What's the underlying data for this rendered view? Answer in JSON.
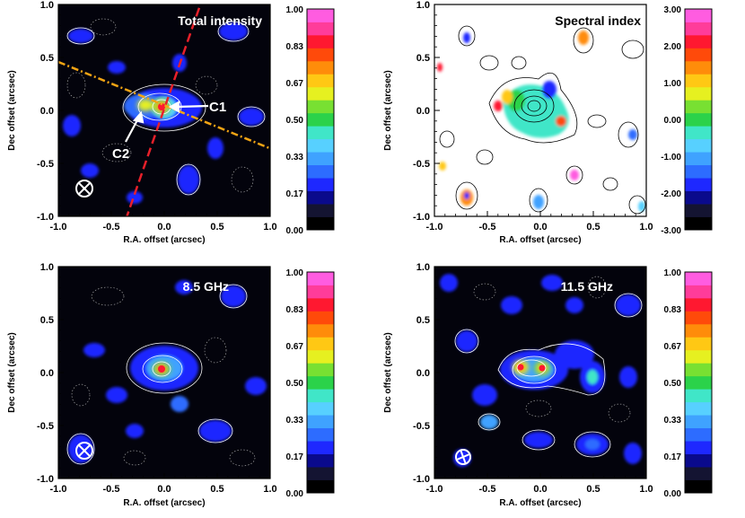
{
  "figure": {
    "type": "astronomical radio maps with color scale bars",
    "panels": 4
  },
  "chart_data": [
    {
      "type": "heatmap",
      "title": "Total intensity",
      "xlabel": "R.A. offset (arcsec)",
      "ylabel": "Dec offset (arcsec)",
      "xlim": [
        -1.0,
        1.0
      ],
      "ylim": [
        -1.0,
        1.0
      ],
      "xticks": [
        "-1.0",
        "-0.5",
        "0.0",
        "0.5",
        "1.0"
      ],
      "yticks": [
        "-1.0",
        "-0.5",
        "0.0",
        "0.5",
        "1.0"
      ],
      "colorbar": {
        "min": 0.0,
        "max": 1.0,
        "ticks": [
          "0.00",
          "0.17",
          "0.33",
          "0.50",
          "0.67",
          "0.83",
          "1.00"
        ]
      },
      "annotations": [
        "C1",
        "C2"
      ],
      "peaks": [
        {
          "name": "C1",
          "x": 0.0,
          "y": 0.03,
          "value": 1.0
        },
        {
          "name": "C2",
          "x": -0.2,
          "y": 0.05,
          "value": 0.7
        }
      ],
      "background": "dark",
      "beam_marker": {
        "x": -0.75,
        "y": -0.72
      },
      "lines": [
        {
          "style": "dashed",
          "color": "#e8202a",
          "from": [
            -0.38,
            -1.05
          ],
          "to": [
            0.33,
            1.05
          ]
        },
        {
          "style": "dash-dot",
          "color": "#f2a414",
          "from": [
            -1.0,
            0.45
          ],
          "to": [
            1.05,
            -0.38
          ]
        }
      ]
    },
    {
      "type": "heatmap",
      "title": "Spectral index",
      "xlabel": "R.A. offset (arcsec)",
      "ylabel": "Dec offset (arcsec)",
      "xlim": [
        -1.0,
        1.0
      ],
      "ylim": [
        -1.0,
        1.0
      ],
      "xticks": [
        "-1.0",
        "-0.5",
        "0.0",
        "0.5",
        "1.0"
      ],
      "yticks": [
        "-1.0",
        "-0.5",
        "0.0",
        "0.5",
        "1.0"
      ],
      "colorbar": {
        "min": -3.0,
        "max": 3.0,
        "ticks": [
          "-3.00",
          "-2.00",
          "-1.00",
          "0.00",
          "1.00",
          "2.00",
          "3.00"
        ]
      },
      "background": "white"
    },
    {
      "type": "heatmap",
      "title": "8.5 GHz",
      "xlabel": "R.A. offset (arcsec)",
      "ylabel": "Dec offset (arcsec)",
      "xlim": [
        -1.0,
        1.0
      ],
      "ylim": [
        -1.0,
        1.0
      ],
      "xticks": [
        "-1.0",
        "-0.5",
        "0.0",
        "0.5",
        "1.0"
      ],
      "yticks": [
        "-1.0",
        "-0.5",
        "0.0",
        "0.5",
        "1.0"
      ],
      "colorbar": {
        "min": 0.0,
        "max": 1.0,
        "ticks": [
          "0.00",
          "0.17",
          "0.33",
          "0.50",
          "0.67",
          "0.83",
          "1.00"
        ]
      },
      "peaks": [
        {
          "x": 0.0,
          "y": 0.05,
          "value": 1.0
        }
      ],
      "background": "dark",
      "beam_marker": {
        "x": -0.75,
        "y": -0.72
      }
    },
    {
      "type": "heatmap",
      "title": "11.5 GHz",
      "xlabel": "R.A. offset (arcsec)",
      "ylabel": "Dec offset (arcsec)",
      "xlim": [
        -1.0,
        1.0
      ],
      "ylim": [
        -1.0,
        1.0
      ],
      "xticks": [
        "-1.0",
        "-0.5",
        "0.0",
        "0.5",
        "1.0"
      ],
      "yticks": [
        "-1.0",
        "-0.5",
        "0.0",
        "0.5",
        "1.0"
      ],
      "colorbar": {
        "min": 0.0,
        "max": 1.0,
        "ticks": [
          "0.00",
          "0.17",
          "0.33",
          "0.50",
          "0.67",
          "0.83",
          "1.00"
        ]
      },
      "peaks": [
        {
          "x": -0.18,
          "y": 0.1,
          "value": 1.0
        },
        {
          "x": 0.0,
          "y": 0.1,
          "value": 0.85
        }
      ],
      "background": "dark",
      "beam_marker": {
        "x": -0.75,
        "y": -0.78
      }
    }
  ],
  "colors": {
    "colorbar": [
      "#000000",
      "#141432",
      "#0a0a8c",
      "#1e28ff",
      "#2d6cff",
      "#3fa2ff",
      "#57d0ff",
      "#40e6c8",
      "#2bd24a",
      "#78e032",
      "#e6f020",
      "#ffc814",
      "#ff8c0a",
      "#ff4a0a",
      "#ff1830",
      "#ff3c9a",
      "#ff5ce0"
    ],
    "map_background": "#03030c",
    "arrow": "#ffffff",
    "red_line": "#e8202a",
    "orange_line": "#f2a414"
  }
}
